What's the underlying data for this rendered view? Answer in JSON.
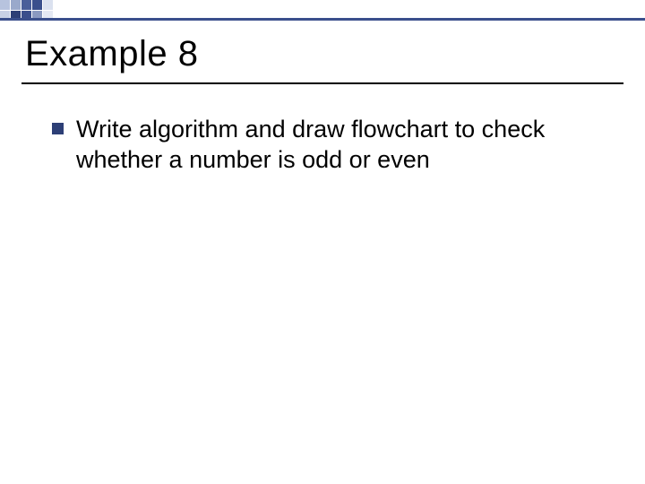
{
  "decoration": {
    "cells": [
      "#b7c3de",
      "#9aa9cb",
      "#4a5f9a",
      "#3a4f8c",
      "#dbe1ef",
      "#c8d1e5",
      "#2d3f76",
      "#3a4f8c",
      "#8a99c0",
      "#e5e9f3"
    ],
    "line_color": "#3a4f8c"
  },
  "title": {
    "text": "Example 8",
    "fontsize": 40,
    "color": "#000000"
  },
  "underline_color": "#000000",
  "bullet": {
    "color": "#2d3f76",
    "size": 13
  },
  "body": {
    "text": "Write algorithm and draw flowchart to check whether a number is odd or even",
    "fontsize": 27,
    "color": "#000000"
  },
  "background_color": "#ffffff"
}
